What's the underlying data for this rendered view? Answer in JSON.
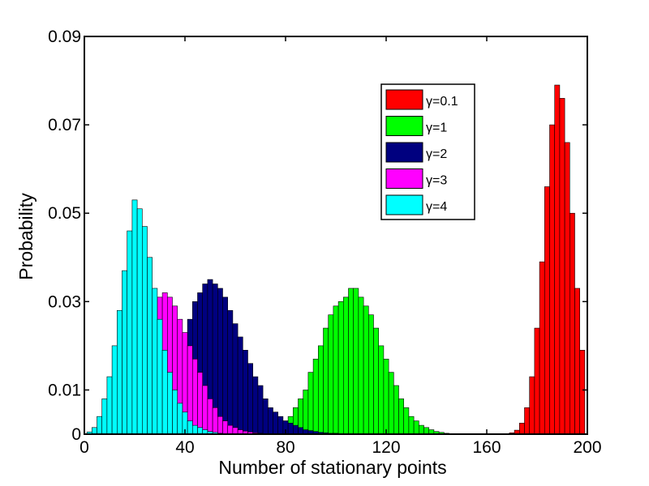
{
  "chart_data": {
    "type": "bar",
    "xlabel": "Number of stationary points",
    "ylabel": "Probability",
    "xlim": [
      0,
      200
    ],
    "ylim": [
      0,
      0.09
    ],
    "x_ticks": [
      "0",
      "40",
      "80",
      "120",
      "160",
      "200"
    ],
    "y_ticks": [
      "0",
      "0.01",
      "0.03",
      "0.05",
      "0.07",
      "0.09"
    ],
    "grid": false,
    "legend_position": "top-right",
    "bin_width": 2,
    "series": [
      {
        "name": "γ=0.1",
        "color": "#ff0000",
        "x": [
          170,
          172,
          174,
          176,
          178,
          180,
          182,
          184,
          186,
          188,
          190,
          192,
          194,
          196,
          198
        ],
        "values": [
          0.0003,
          0.0009,
          0.0025,
          0.006,
          0.013,
          0.024,
          0.039,
          0.056,
          0.07,
          0.079,
          0.076,
          0.066,
          0.05,
          0.033,
          0.019
        ]
      },
      {
        "name": "γ=1",
        "color": "#00ff00",
        "x": [
          78,
          80,
          82,
          84,
          86,
          88,
          90,
          92,
          94,
          96,
          98,
          100,
          102,
          104,
          106,
          108,
          110,
          112,
          114,
          116,
          118,
          120,
          122,
          124,
          126,
          128,
          130,
          132,
          134,
          136,
          138,
          140,
          142,
          144
        ],
        "values": [
          0.002,
          0.003,
          0.004,
          0.006,
          0.008,
          0.01,
          0.014,
          0.017,
          0.02,
          0.024,
          0.027,
          0.029,
          0.03,
          0.031,
          0.033,
          0.033,
          0.031,
          0.029,
          0.027,
          0.024,
          0.02,
          0.017,
          0.014,
          0.011,
          0.008,
          0.006,
          0.004,
          0.003,
          0.002,
          0.0015,
          0.001,
          0.0006,
          0.0004,
          0.0002
        ]
      },
      {
        "name": "γ=2",
        "color": "#00007f",
        "x": [
          30,
          32,
          34,
          36,
          38,
          40,
          42,
          44,
          46,
          48,
          50,
          52,
          54,
          56,
          58,
          60,
          62,
          64,
          66,
          68,
          70,
          72,
          74,
          76,
          78,
          80,
          82,
          84,
          86,
          88,
          90,
          92,
          94,
          96,
          98,
          100,
          102,
          104
        ],
        "values": [
          0.002,
          0.004,
          0.007,
          0.011,
          0.016,
          0.021,
          0.026,
          0.03,
          0.032,
          0.034,
          0.035,
          0.034,
          0.033,
          0.031,
          0.028,
          0.025,
          0.022,
          0.019,
          0.016,
          0.013,
          0.011,
          0.008,
          0.006,
          0.005,
          0.004,
          0.003,
          0.0025,
          0.002,
          0.0015,
          0.001,
          0.0008,
          0.0006,
          0.0004,
          0.0003,
          0.0002,
          0.0002,
          0.0001,
          0.0001
        ]
      },
      {
        "name": "γ=3",
        "color": "#ff00ff",
        "x": [
          14,
          16,
          18,
          20,
          22,
          24,
          26,
          28,
          30,
          32,
          34,
          36,
          38,
          40,
          42,
          44,
          46,
          48,
          50,
          52,
          54,
          56,
          58,
          60,
          62,
          64,
          66,
          68,
          70
        ],
        "values": [
          0.002,
          0.004,
          0.007,
          0.011,
          0.016,
          0.021,
          0.025,
          0.028,
          0.031,
          0.032,
          0.031,
          0.029,
          0.026,
          0.023,
          0.02,
          0.017,
          0.014,
          0.011,
          0.008,
          0.006,
          0.004,
          0.003,
          0.002,
          0.0015,
          0.001,
          0.0007,
          0.0005,
          0.0003,
          0.0002
        ]
      },
      {
        "name": "γ=4",
        "color": "#00ffff",
        "x": [
          2,
          4,
          6,
          8,
          10,
          12,
          14,
          16,
          18,
          20,
          22,
          24,
          26,
          28,
          30,
          32,
          34,
          36,
          38,
          40,
          42,
          44,
          46,
          48,
          50,
          52,
          54
        ],
        "values": [
          0.0005,
          0.0015,
          0.004,
          0.008,
          0.013,
          0.02,
          0.028,
          0.037,
          0.046,
          0.053,
          0.051,
          0.047,
          0.04,
          0.033,
          0.026,
          0.019,
          0.014,
          0.01,
          0.007,
          0.005,
          0.003,
          0.002,
          0.0015,
          0.001,
          0.0006,
          0.0004,
          0.0002
        ]
      }
    ]
  }
}
